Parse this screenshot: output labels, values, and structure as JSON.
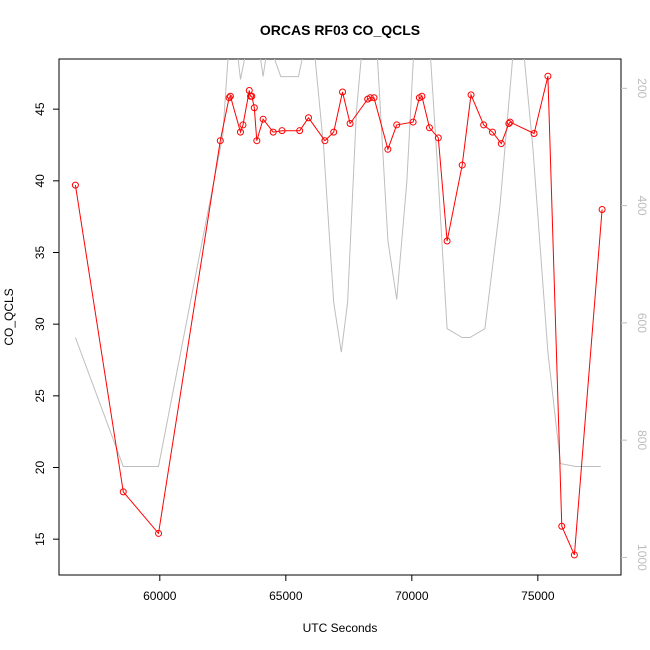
{
  "chart_data": {
    "type": "line",
    "title": "ORCAS RF03 CO_QCLS",
    "xlabel": "UTC Seconds",
    "ylabel": "CO_QCLS",
    "xlim": [
      56000,
      78300
    ],
    "ylim": [
      12.5,
      48.5
    ],
    "x_ticks": [
      60000,
      65000,
      70000,
      75000
    ],
    "y_ticks": [
      15,
      20,
      25,
      30,
      35,
      40,
      45
    ],
    "y2lim": [
      1030,
      150
    ],
    "y2_ticks": [
      200,
      400,
      600,
      800,
      1000
    ],
    "series": [
      {
        "color": "#ff0000",
        "marker": "circle",
        "axis": "left",
        "x": [
          56650,
          58550,
          59950,
          62400,
          62750,
          62800,
          63200,
          63300,
          63550,
          63600,
          63650,
          63750,
          63850,
          64100,
          64500,
          64850,
          65550,
          65900,
          66550,
          66900,
          67250,
          67550,
          68250,
          68350,
          68500,
          69050,
          69400,
          70050,
          70300,
          70400,
          70700,
          71050,
          71400,
          72000,
          72350,
          72850,
          73200,
          73550,
          73850,
          73900,
          74850,
          75400,
          75950,
          76450,
          77550
        ],
        "y": [
          39.7,
          18.3,
          15.4,
          42.8,
          45.8,
          45.9,
          43.4,
          43.9,
          46.3,
          45.9,
          45.9,
          45.1,
          42.8,
          44.3,
          43.4,
          43.5,
          43.5,
          44.4,
          42.8,
          43.4,
          46.2,
          44.0,
          45.7,
          45.8,
          45.8,
          42.2,
          43.9,
          44.1,
          45.8,
          45.9,
          43.7,
          43.0,
          35.8,
          41.1,
          46.0,
          43.9,
          43.4,
          42.6,
          44.0,
          44.1,
          43.3,
          47.3,
          15.9,
          13.9,
          38.0
        ]
      },
      {
        "color": "#bebebe",
        "marker": "none",
        "axis": "right",
        "x": [
          56650,
          58550,
          59950,
          62500,
          62750,
          63000,
          63200,
          63500,
          63700,
          63900,
          64100,
          64300,
          64800,
          65500,
          65800,
          66100,
          66500,
          66900,
          67200,
          67450,
          67800,
          68050,
          68600,
          69050,
          69400,
          69800,
          70100,
          70350,
          70700,
          71000,
          71400,
          72000,
          72300,
          72900,
          73500,
          74000,
          74400,
          74800,
          75400,
          75900,
          76500,
          77500
        ],
        "y": [
          625,
          845,
          845,
          280,
          120,
          110,
          185,
          120,
          120,
          120,
          180,
          120,
          180,
          180,
          120,
          120,
          300,
          565,
          650,
          565,
          240,
          120,
          120,
          460,
          560,
          360,
          120,
          120,
          120,
          320,
          610,
          625,
          625,
          610,
          400,
          150,
          120,
          300,
          650,
          840,
          845,
          845
        ]
      }
    ]
  }
}
